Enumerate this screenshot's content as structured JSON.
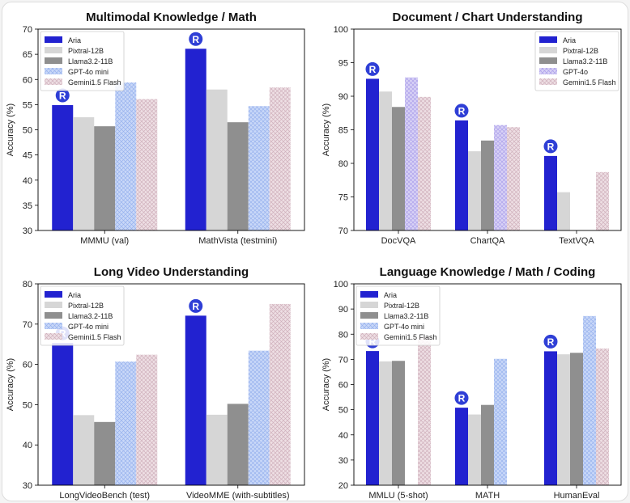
{
  "colors": {
    "Aria": "#2222d0",
    "Pixtral-12B": "#d6d6d6",
    "Llama3.2-11B": "#8f8f8f",
    "GPT-4o mini": "#b8ccf5",
    "GPT-4o": "#c8c0f0",
    "Gemini1.5 Flash": "#e4ccd4"
  },
  "chart_data": [
    {
      "type": "bar",
      "title": "Multimodal Knowledge / Math",
      "ylabel": "Accuracy (%)",
      "ylim": [
        30,
        70
      ],
      "yticks": [
        30,
        35,
        40,
        45,
        50,
        55,
        60,
        65,
        70
      ],
      "legend_position": "top-left",
      "categories": [
        "MMMU (val)",
        "MathVista (testmini)"
      ],
      "series": [
        {
          "name": "Aria",
          "values": [
            54.9,
            66.1
          ]
        },
        {
          "name": "Pixtral-12B",
          "values": [
            52.5,
            58.0
          ]
        },
        {
          "name": "Llama3.2-11B",
          "values": [
            50.7,
            51.5
          ]
        },
        {
          "name": "GPT-4o mini",
          "values": [
            59.4,
            54.7
          ]
        },
        {
          "name": "Gemini1.5 Flash",
          "values": [
            56.1,
            58.4
          ]
        }
      ]
    },
    {
      "type": "bar",
      "title": "Document / Chart Understanding",
      "ylabel": "Accuracy (%)",
      "ylim": [
        70,
        100
      ],
      "yticks": [
        70,
        75,
        80,
        85,
        90,
        95,
        100
      ],
      "legend_position": "top-right",
      "categories": [
        "DocVQA",
        "ChartQA",
        "TextVQA"
      ],
      "series": [
        {
          "name": "Aria",
          "values": [
            92.6,
            86.4,
            81.1
          ]
        },
        {
          "name": "Pixtral-12B",
          "values": [
            90.7,
            81.8,
            75.7
          ]
        },
        {
          "name": "Llama3.2-11B",
          "values": [
            88.4,
            83.4,
            null
          ]
        },
        {
          "name": "GPT-4o",
          "values": [
            92.8,
            85.7,
            null
          ]
        },
        {
          "name": "Gemini1.5 Flash",
          "values": [
            89.9,
            85.4,
            78.7
          ]
        }
      ]
    },
    {
      "type": "bar",
      "title": "Long Video Understanding",
      "ylabel": "Accuracy (%)",
      "ylim": [
        30,
        80
      ],
      "yticks": [
        30,
        40,
        50,
        60,
        70,
        80
      ],
      "legend_position": "top-left",
      "categories": [
        "LongVideoBench (test)",
        "VideoMME (with-subtitles)"
      ],
      "series": [
        {
          "name": "Aria",
          "values": [
            65.3,
            72.1
          ]
        },
        {
          "name": "Pixtral-12B",
          "values": [
            47.4,
            47.5
          ]
        },
        {
          "name": "Llama3.2-11B",
          "values": [
            45.7,
            50.2
          ]
        },
        {
          "name": "GPT-4o mini",
          "values": [
            60.7,
            63.4
          ]
        },
        {
          "name": "Gemini1.5 Flash",
          "values": [
            62.4,
            75.0
          ]
        }
      ]
    },
    {
      "type": "bar",
      "title": "Language Knowledge / Math / Coding",
      "ylabel": "Accuracy (%)",
      "ylim": [
        20,
        100
      ],
      "yticks": [
        20,
        30,
        40,
        50,
        60,
        70,
        80,
        90,
        100
      ],
      "legend_position": "top-left",
      "categories": [
        "MMLU (5-shot)",
        "MATH",
        "HumanEval"
      ],
      "series": [
        {
          "name": "Aria",
          "values": [
            73.3,
            50.8,
            73.2
          ]
        },
        {
          "name": "Pixtral-12B",
          "values": [
            69.2,
            48.1,
            72.0
          ]
        },
        {
          "name": "Llama3.2-11B",
          "values": [
            69.4,
            51.9,
            72.6
          ]
        },
        {
          "name": "GPT-4o mini",
          "values": [
            null,
            70.2,
            87.2
          ]
        },
        {
          "name": "Gemini1.5 Flash",
          "values": [
            78.9,
            null,
            74.3
          ]
        }
      ]
    }
  ]
}
